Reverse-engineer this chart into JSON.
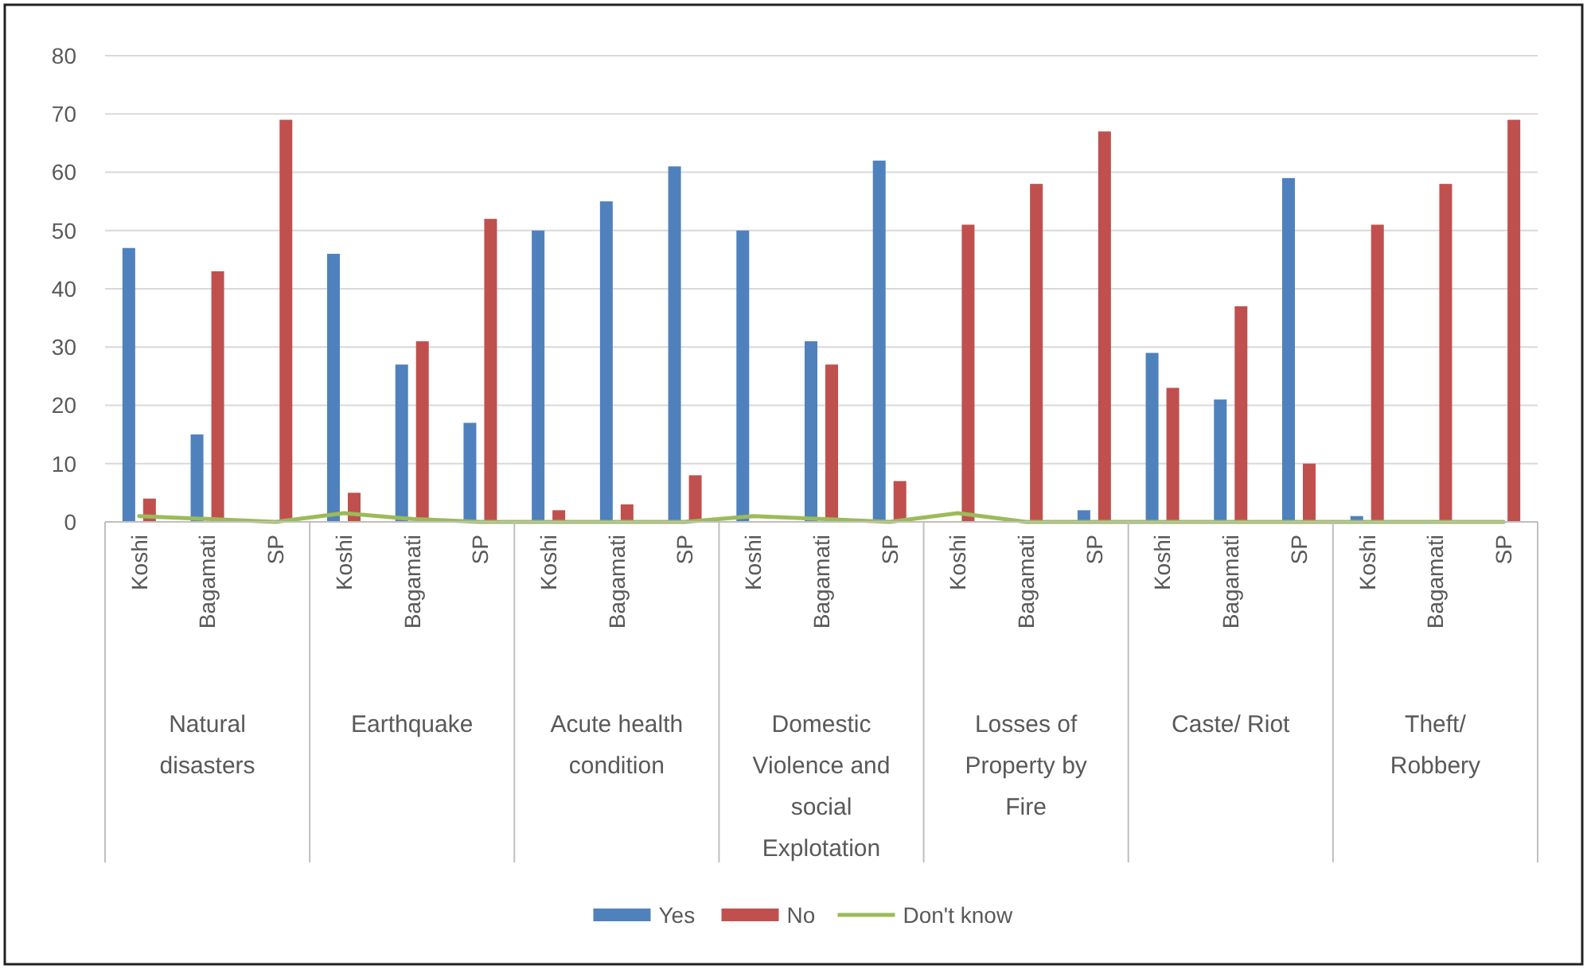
{
  "chart_data": {
    "type": "bar",
    "categories": [
      "Koshi",
      "Bagamati",
      "SP",
      "Koshi",
      "Bagamati",
      "SP",
      "Koshi",
      "Bagamati",
      "SP",
      "Koshi",
      "Bagamati",
      "SP",
      "Koshi",
      "Bagamati",
      "SP",
      "Koshi",
      "Bagamati",
      "SP",
      "Koshi",
      "Bagamati",
      "SP"
    ],
    "annotations": [
      "Natural disasters",
      "Earthquake",
      "Acute health condition",
      "Domestic Violence and social Explotation",
      "Losses of Property by Fire",
      "Caste/ Riot",
      "Theft/ Robbery"
    ],
    "series": [
      {
        "name": "Yes",
        "color": "#4f81bd",
        "values": [
          47,
          15,
          0,
          46,
          27,
          17,
          50,
          55,
          61,
          50,
          31,
          62,
          0,
          0,
          2,
          29,
          21,
          59,
          1,
          0,
          0
        ]
      },
      {
        "name": "No",
        "color": "#c0504d",
        "values": [
          4,
          43,
          69,
          5,
          31,
          52,
          2,
          3,
          8,
          0,
          27,
          7,
          51,
          58,
          67,
          23,
          37,
          10,
          51,
          58,
          69
        ]
      },
      {
        "name": "Don't know",
        "type": "line",
        "color": "#9bbb59",
        "values": [
          1,
          0.5,
          0,
          1.5,
          0.5,
          0,
          0,
          0,
          0,
          1,
          0.5,
          0,
          1.5,
          0,
          0,
          0,
          0,
          0,
          0,
          0,
          0
        ]
      }
    ],
    "ylim": [
      0,
      80
    ],
    "yticks": [
      0,
      10,
      20,
      30,
      40,
      50,
      60,
      70,
      80
    ],
    "grid": "y",
    "legend": "bottom"
  }
}
